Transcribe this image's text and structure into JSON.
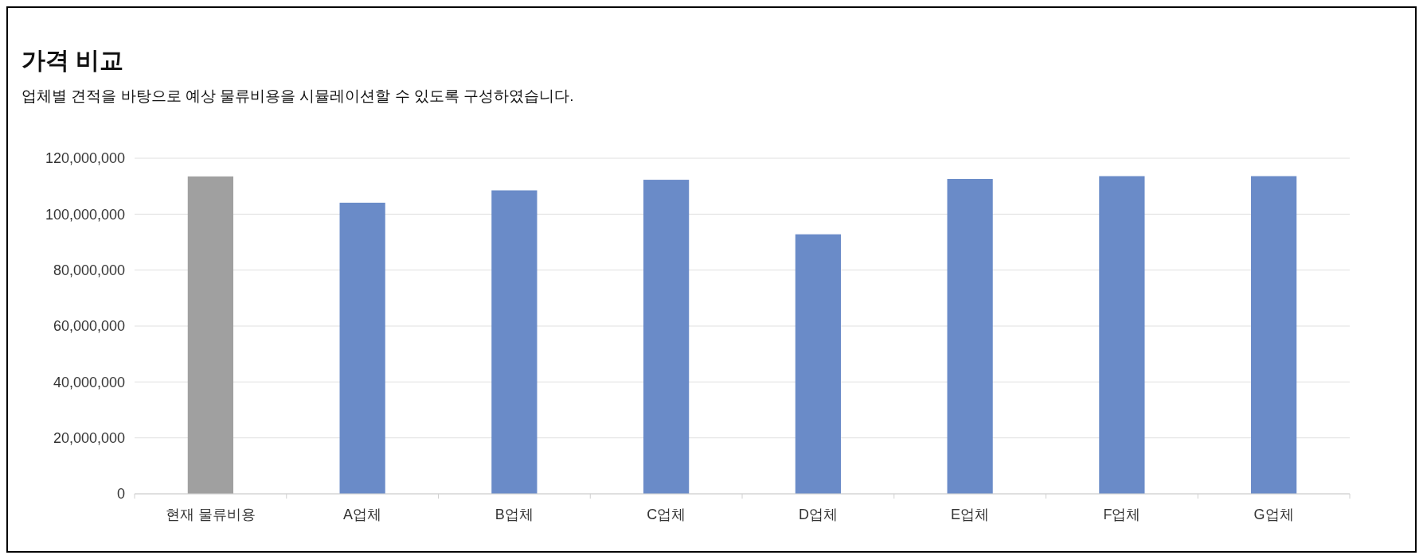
{
  "chart_data": {
    "type": "bar",
    "title": "가격 비교",
    "subtitle": "업체별 견적을 바탕으로 예상 물류비용을 시뮬레이션할 수 있도록 구성하였습니다.",
    "categories": [
      "현재 물류비용",
      "A업체",
      "B업체",
      "C업체",
      "D업체",
      "E업체",
      "F업체",
      "G업체"
    ],
    "values": [
      113500000,
      104100000,
      108500000,
      112300000,
      92800000,
      112600000,
      113600000,
      113600000
    ],
    "colors": [
      "#a0a0a0",
      "#6a8bc8",
      "#6a8bc8",
      "#6a8bc8",
      "#6a8bc8",
      "#6a8bc8",
      "#6a8bc8",
      "#6a8bc8"
    ],
    "ylim": [
      0,
      120000000
    ],
    "yticks": [
      {
        "value": 0,
        "label": "0"
      },
      {
        "value": 20000000,
        "label": "20,000,000"
      },
      {
        "value": 40000000,
        "label": "40,000,000"
      },
      {
        "value": 60000000,
        "label": "60,000,000"
      },
      {
        "value": 80000000,
        "label": "80,000,000"
      },
      {
        "value": 100000000,
        "label": "100,000,000"
      },
      {
        "value": 120000000,
        "label": "120,000,000"
      }
    ],
    "grid": "y"
  }
}
